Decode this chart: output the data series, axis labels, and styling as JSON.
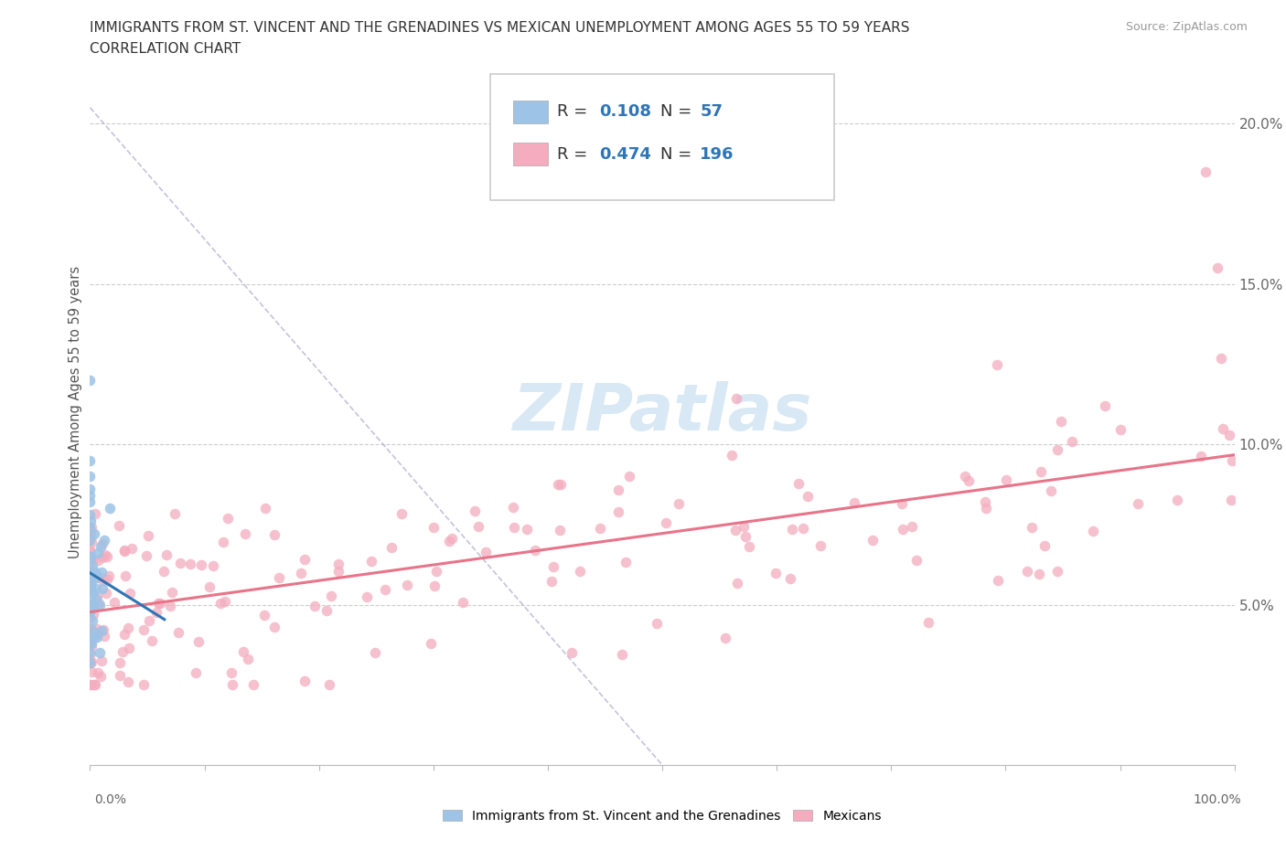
{
  "title_line1": "IMMIGRANTS FROM ST. VINCENT AND THE GRENADINES VS MEXICAN UNEMPLOYMENT AMONG AGES 55 TO 59 YEARS",
  "title_line2": "CORRELATION CHART",
  "source": "Source: ZipAtlas.com",
  "ylabel": "Unemployment Among Ages 55 to 59 years",
  "xlim": [
    0.0,
    1.0
  ],
  "ylim": [
    0.0,
    0.22
  ],
  "blue_color": "#9DC3E6",
  "pink_color": "#F4ACBE",
  "blue_line_color": "#2E75B6",
  "pink_line_color": "#E8748A",
  "legend_text_color": "#2E75B6",
  "blue_R": 0.108,
  "blue_N": 57,
  "pink_R": 0.474,
  "pink_N": 196,
  "background_color": "#FFFFFF"
}
